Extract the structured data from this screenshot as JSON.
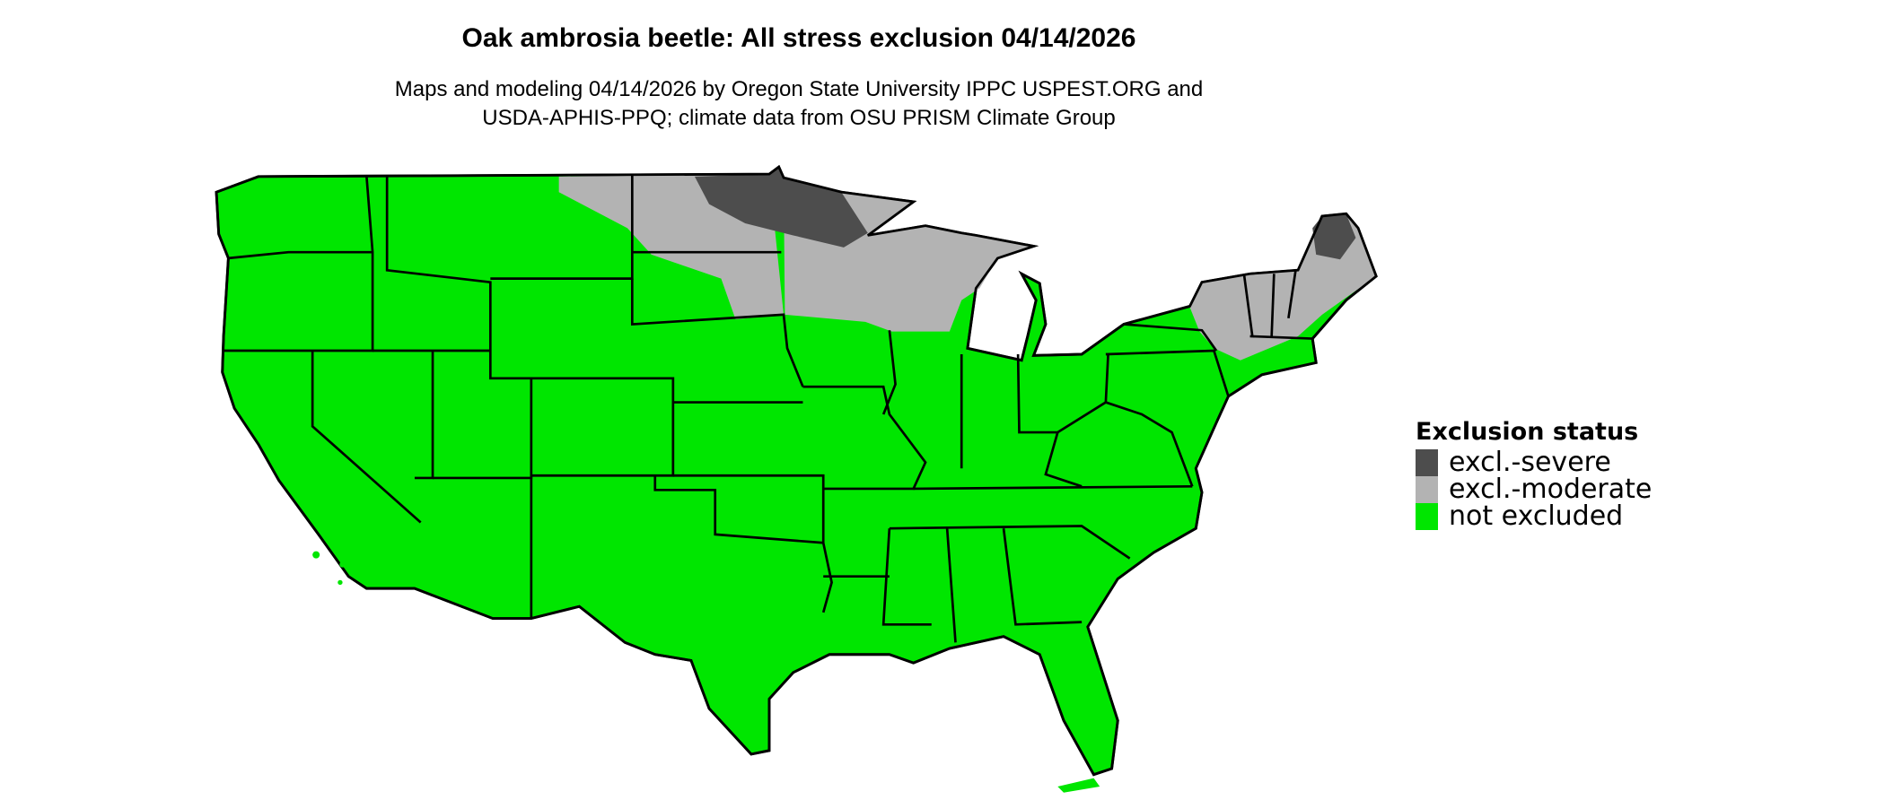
{
  "title": "Oak ambrosia beetle: All stress exclusion 04/14/2026",
  "subtitle_lines": [
    "Maps and modeling 04/14/2026 by Oregon State University IPPC USPEST.ORG and",
    "USDA-APHIS-PPQ; climate data from OSU PRISM Climate Group"
  ],
  "legend": {
    "title": "Exclusion status",
    "items": [
      {
        "label": "excl.-severe",
        "color": "#4d4d4d"
      },
      {
        "label": "excl.-moderate",
        "color": "#b3b3b3"
      },
      {
        "label": "not excluded",
        "color": "#00e600"
      }
    ]
  },
  "map": {
    "region": "contiguous United States",
    "boundary_color": "#000000",
    "background_color": "#ffffff"
  }
}
